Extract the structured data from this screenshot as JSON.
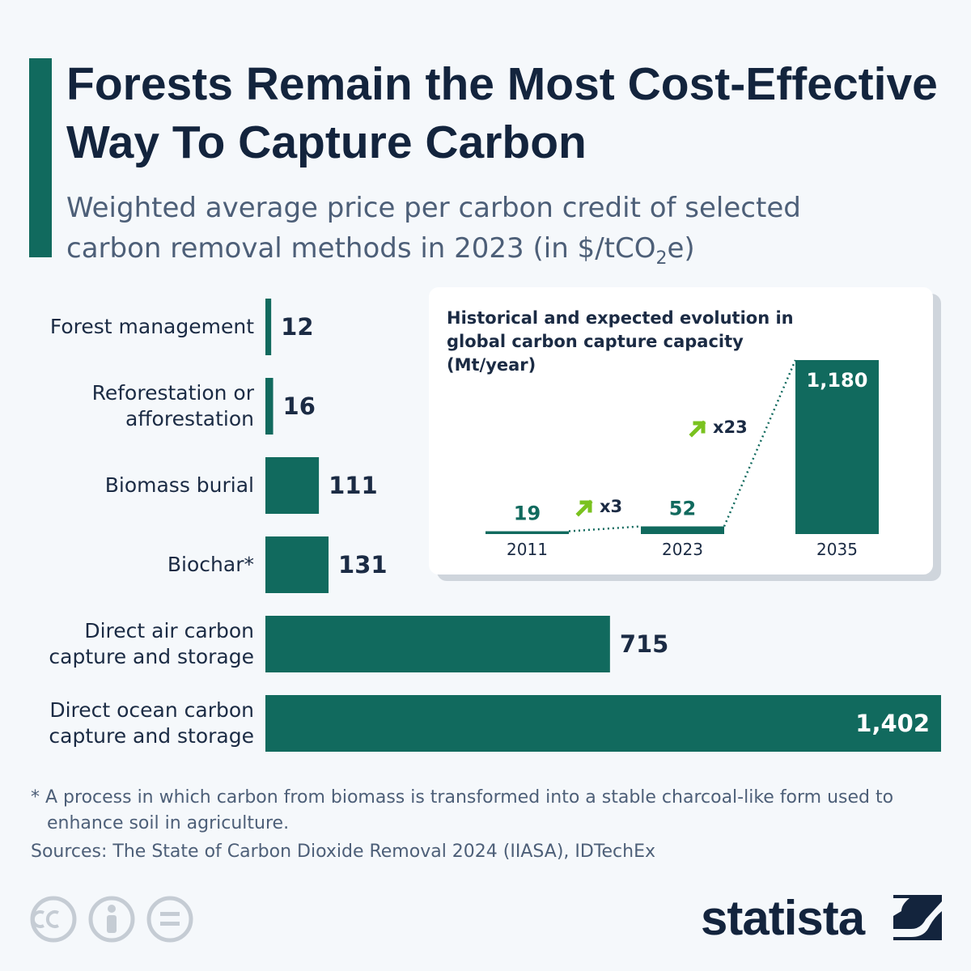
{
  "title": "Forests Remain the Most Cost-Effective Way To Capture Carbon",
  "subtitle": [
    "Weighted average price per carbon credit of selected carbon removal methods in 2023 (in $/tCO",
    "2",
    "e)"
  ],
  "chart_data": [
    {
      "type": "hbar",
      "color": "#116a5e",
      "categories": [
        "Forest management",
        "Reforestation or afforestation",
        "Biomass burial",
        "Biochar*",
        "Direct air carbon capture and storage",
        "Direct ocean carbon capture and storage"
      ],
      "values": [
        12,
        16,
        111,
        131,
        715,
        1402
      ],
      "value_labels": [
        "12",
        "16",
        "111",
        "131",
        "715",
        "1,402"
      ]
    },
    {
      "type": "bar",
      "color": "#116a5e",
      "title": "Historical and expected evolution in global carbon capture capacity (Mt/year)",
      "categories": [
        "2011",
        "2023",
        "2035"
      ],
      "values": [
        19,
        52,
        1180
      ],
      "value_labels": [
        "19",
        "52",
        "1,180"
      ],
      "growth_labels": [
        "x3",
        "x23"
      ],
      "growth_color": "#7ac21f"
    }
  ],
  "footnote": "* A process in which carbon from biomass is transformed into a stable charcoal-like form used to enhance soil in agriculture.",
  "source": "Sources: The State of Carbon Dioxide Removal 2024 (IIASA), IDTechEx",
  "brand": "statista"
}
